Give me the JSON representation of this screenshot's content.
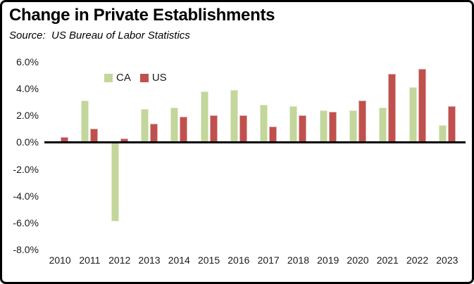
{
  "frame": {
    "background": "#ffffff",
    "border_color": "#000000"
  },
  "chart_data": {
    "type": "bar",
    "title": "Change in Private Establishments",
    "subtitle": "Source:  US Bureau of Labor Statistics",
    "categories": [
      "2010",
      "2011",
      "2012",
      "2013",
      "2014",
      "2015",
      "2016",
      "2017",
      "2018",
      "2019",
      "2020",
      "2021",
      "2022",
      "2023"
    ],
    "series": [
      {
        "name": "CA",
        "color": "#c3d69b",
        "border_color": "#e2ecce",
        "values": [
          0.0,
          3.1,
          -5.9,
          2.5,
          2.6,
          3.8,
          3.9,
          2.8,
          2.7,
          2.4,
          2.4,
          2.6,
          4.1,
          1.3
        ]
      },
      {
        "name": "US",
        "color": "#c0504d",
        "border_color": "#dfaead",
        "values": [
          0.4,
          1.0,
          0.3,
          1.4,
          1.9,
          2.0,
          2.0,
          1.2,
          2.0,
          2.3,
          3.1,
          5.1,
          5.5,
          2.7
        ]
      }
    ],
    "xlabel": "",
    "ylabel": "",
    "ylim": [
      -8,
      6
    ],
    "yticks": [
      6,
      4,
      2,
      0,
      -2,
      -4,
      -6,
      -8
    ],
    "ytick_labels": [
      "6.0%",
      "4.0%",
      "2.0%",
      "0.0%",
      "-2.0%",
      "-4.0%",
      "-6.0%",
      "-8.0%"
    ],
    "grid": false,
    "legend_position": "inside-top-left",
    "axis_line_color": "#000000"
  }
}
